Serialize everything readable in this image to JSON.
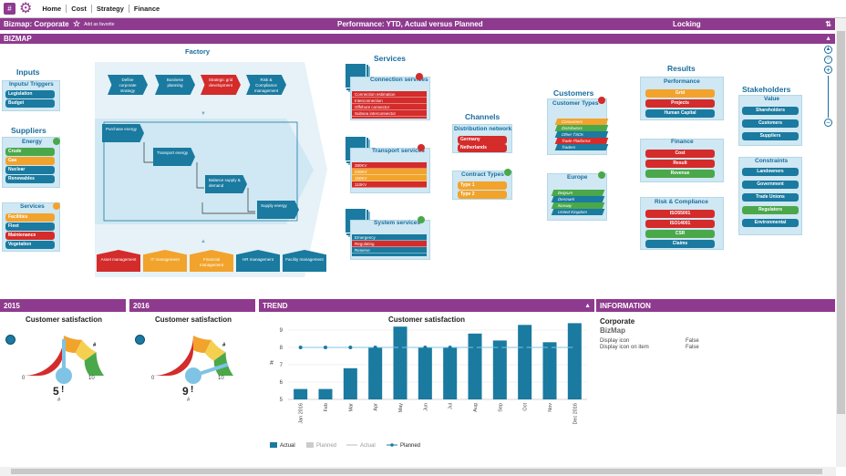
{
  "nav": {
    "items": [
      "Home",
      "Cost",
      "Strategy",
      "Finance"
    ]
  },
  "header": {
    "title": "Bizmap: Corporate",
    "favorite": "Add as favorite",
    "center": "Performance: YTD, Actual versus Planned",
    "right": "Locking"
  },
  "section": {
    "title": "BIZMAP"
  },
  "inputs": {
    "title": "Inputs",
    "triggers_title": "Inputs/ Triggers",
    "triggers": [
      "Legislation",
      "Budget"
    ],
    "suppliers_title": "Suppliers",
    "energy_title": "Energy",
    "energy": [
      "Crude",
      "Gas",
      "Nuclear",
      "Renewables"
    ],
    "services_title": "Services",
    "services": [
      "Facilities",
      "Fleet",
      "Maintenance",
      "Vegetation"
    ]
  },
  "factory": {
    "title": "Factory",
    "top": [
      "Define corporate strategy",
      "Business planning",
      "Strategic grid development",
      "Risk & Compliance management"
    ],
    "flow": [
      "Purchase energy",
      "Transport energy",
      "Balance supply & demand",
      "Supply energy"
    ],
    "bottom": [
      "Asset management",
      "IT management",
      "Financial management",
      "HR management",
      "Facility management"
    ]
  },
  "services": {
    "title": "Services",
    "connection_title": "Connection services",
    "connection": [
      "Connection estimation",
      "Interconnection",
      "Offshore connector",
      "Subsea interconnector"
    ],
    "transport_title": "Transport services",
    "transport": [
      "380KV",
      "220KV",
      "150KV",
      "110KV"
    ],
    "system_title": "System services",
    "system": [
      "Emergency",
      "Regulating",
      "Reserve"
    ]
  },
  "channels": {
    "title": "Channels",
    "distribution_title": "Distribution network",
    "distribution": [
      "Germany",
      "Netherlands"
    ],
    "contract_title": "Contract Types",
    "contract": [
      "Type 1",
      "Type 2"
    ]
  },
  "customers": {
    "title": "Customers",
    "types_title": "Customer Types",
    "types": [
      "Consumers",
      "Distributors",
      "Other TSOs",
      "Trade Platforms",
      "Traders"
    ],
    "europe_title": "Europe",
    "europe": [
      "Belgium",
      "Denmark",
      "Norway",
      "United Kingdom"
    ]
  },
  "results": {
    "title": "Results",
    "performance_title": "Performance",
    "performance": [
      "Grid",
      "Projects",
      "Human Capital"
    ],
    "finance_title": "Finance",
    "finance": [
      "Cost",
      "Result",
      "Revenue"
    ],
    "risk_title": "Risk & Compliance",
    "risk": [
      "ISO55001",
      "ISO14001",
      "CSR",
      "Claims"
    ]
  },
  "stakeholders": {
    "title": "Stakeholders",
    "value_title": "Value",
    "value": [
      "Shareholders",
      "Customers",
      "Suppliers"
    ],
    "constraints_title": "Constraints",
    "constraints": [
      "Landowners",
      "Government",
      "Trade Unions",
      "Regulators",
      "Environmental"
    ]
  },
  "panels": {
    "p2015": "2015",
    "p2016": "2016",
    "trend": "TREND",
    "info": "INFORMATION"
  },
  "gauge2015": {
    "title": "Customer satisfaction",
    "value": "5",
    "min": "0",
    "max": "10",
    "hash": "#",
    "warn": "!",
    "level": 0.5
  },
  "gauge2016": {
    "title": "Customer satisfaction",
    "value": "9",
    "min": "0",
    "max": "10",
    "hash": "#",
    "warn": "!",
    "level": 0.9
  },
  "trend": {
    "title": "Customer satisfaction",
    "ylabel": "#"
  },
  "legend": {
    "actual": "Actual",
    "planned_bar": "Planned",
    "actual_line": "Actual",
    "planned_line": "Planned"
  },
  "info": {
    "title": "Corporate",
    "subtitle": "BizMap",
    "rows": [
      {
        "k": "Display icon",
        "v": "False"
      },
      {
        "k": "Display icon on item",
        "v": "False"
      }
    ]
  },
  "colors": {
    "brand": "#8e3a8e",
    "accent": "#1a7aa0",
    "red": "#d42b2b",
    "orange": "#f2a32c",
    "green": "#4aa84a"
  },
  "chart_data": {
    "type": "bar",
    "title": "Customer satisfaction",
    "ylabel": "#",
    "categories": [
      "Jan 2016",
      "Feb",
      "Mar",
      "Apr",
      "May",
      "Jun",
      "Jul",
      "Aug",
      "Sep",
      "Oct",
      "Nov",
      "Dec 2016"
    ],
    "ylim": [
      5,
      9
    ],
    "yticks": [
      5,
      6,
      7,
      8,
      9
    ],
    "series": [
      {
        "name": "Actual",
        "type": "bar",
        "values": [
          5.6,
          5.6,
          6.8,
          8,
          9.2,
          8,
          8,
          8.8,
          8.4,
          9.3,
          8.3,
          9.4
        ]
      },
      {
        "name": "Planned",
        "type": "line",
        "values": [
          8,
          8,
          8,
          8,
          8,
          8,
          8,
          8,
          8,
          8,
          8,
          8
        ]
      }
    ]
  }
}
